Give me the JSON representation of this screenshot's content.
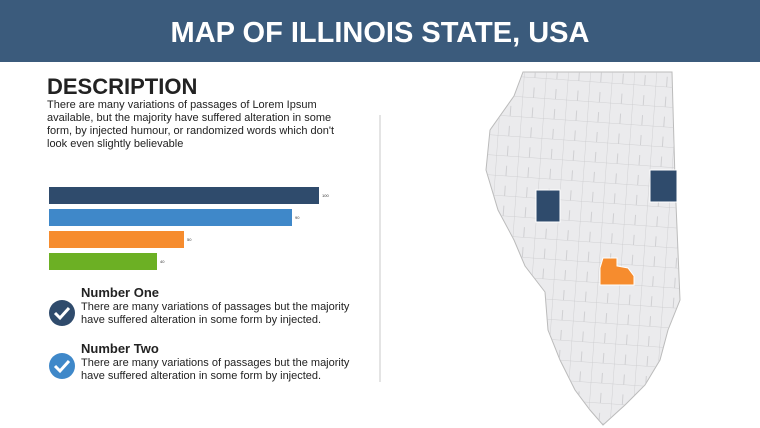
{
  "header": {
    "title": "MAP OF ILLINOIS STATE, USA"
  },
  "description": {
    "heading": "DESCRIPTION",
    "text": "There are many variations of passages of Lorem Ipsum available, but the majority have suffered alteration in some form, by injected humour, or randomized words which don't look even slightly believable"
  },
  "chart_data": {
    "type": "bar",
    "orientation": "horizontal",
    "values": [
      100,
      90,
      50,
      40
    ],
    "colors": [
      "#2f4b6c",
      "#3f88c9",
      "#f68c2e",
      "#6cb024"
    ]
  },
  "items": [
    {
      "title": "Number One",
      "text": "There are many variations of passages but the majority have  suffered alteration in some form by injected."
    },
    {
      "title": "Number Two",
      "text": "There are many variations of passages but the majority have  suffered alteration in some form by injected."
    }
  ]
}
